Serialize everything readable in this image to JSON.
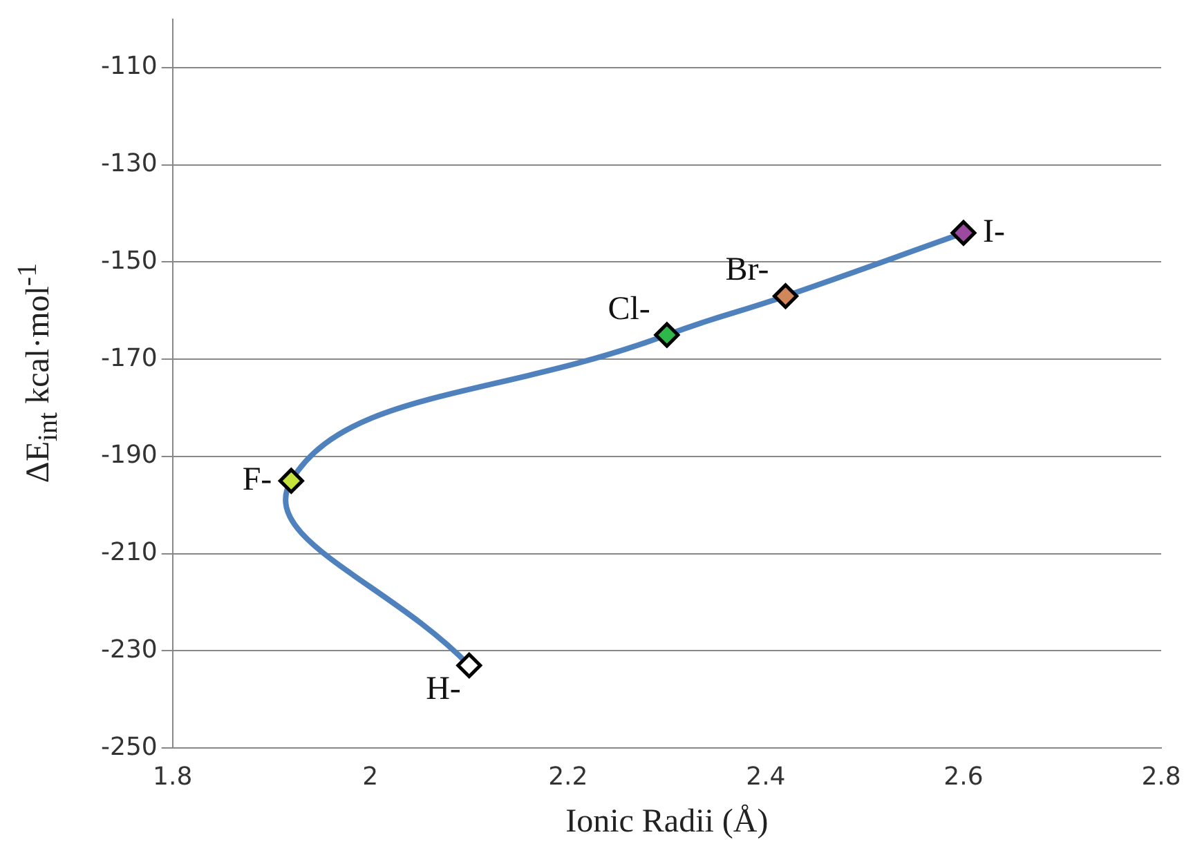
{
  "chart_data": {
    "type": "line",
    "xlabel": "Ionic Radii (Å)",
    "ylabel": "ΔE$_{int}$  kcal·mol$^{-1}$",
    "x": [
      2.1,
      1.92,
      2.3,
      2.42,
      2.6
    ],
    "series": [
      {
        "color": "#4f81bd",
        "values": [
          -233,
          -195,
          -165,
          -157,
          -144
        ],
        "colors": [
          "#ffffff",
          "#c4e33a",
          "#2eb84a",
          "#d0885a",
          "#9b4aa0"
        ]
      }
    ],
    "xlim": [
      1.8,
      2.8
    ],
    "xticks": [
      1.8,
      2,
      2.2,
      2.4,
      2.6,
      2.8
    ],
    "ylim": [
      -250,
      -100
    ],
    "yticks": [
      -250,
      -230,
      -210,
      -190,
      -170,
      -150,
      -130,
      -110
    ],
    "grid": "y",
    "marker": "diamond",
    "line_style": "solid",
    "legend": false,
    "annotations": [
      {
        "text": "H-",
        "x": 2.1,
        "y": -233
      },
      {
        "text": "F-",
        "x": 1.92,
        "y": -195
      },
      {
        "text": "Cl-",
        "x": 2.3,
        "y": -165
      },
      {
        "text": "Br-",
        "x": 2.42,
        "y": -157
      },
      {
        "text": "I-",
        "x": 2.6,
        "y": -144
      }
    ]
  }
}
